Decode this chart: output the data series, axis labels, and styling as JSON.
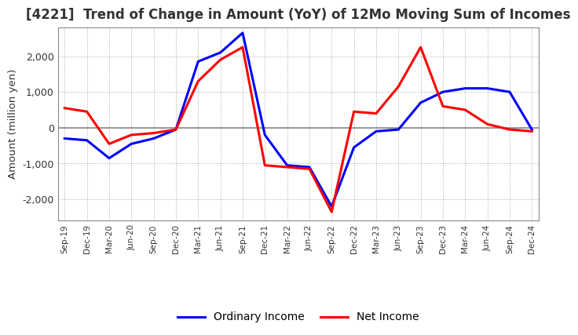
{
  "title": "[4221]  Trend of Change in Amount (YoY) of 12Mo Moving Sum of Incomes",
  "ylabel": "Amount (million yen)",
  "x_labels": [
    "Sep-19",
    "Dec-19",
    "Mar-20",
    "Jun-20",
    "Sep-20",
    "Dec-20",
    "Mar-21",
    "Jun-21",
    "Sep-21",
    "Dec-21",
    "Mar-22",
    "Jun-22",
    "Sep-22",
    "Dec-22",
    "Mar-23",
    "Jun-23",
    "Sep-23",
    "Dec-23",
    "Mar-24",
    "Jun-24",
    "Sep-24",
    "Dec-24"
  ],
  "ordinary_income": [
    -300,
    -350,
    -850,
    -450,
    -300,
    -50,
    1850,
    2100,
    2650,
    -200,
    -1050,
    -1100,
    -2200,
    -550,
    -100,
    -50,
    700,
    1000,
    1100,
    1100,
    1000,
    -50
  ],
  "net_income": [
    550,
    450,
    -450,
    -200,
    -150,
    -50,
    1300,
    1900,
    2250,
    -1050,
    -1100,
    -1150,
    -2350,
    450,
    400,
    1150,
    2250,
    600,
    500,
    100,
    -50,
    -100
  ],
  "ordinary_income_color": "#0000FF",
  "net_income_color": "#FF0000",
  "ylim": [
    -2600,
    2800
  ],
  "yticks": [
    -2000,
    -1000,
    0,
    1000,
    2000
  ],
  "background_color": "#FFFFFF",
  "grid_color": "#999999",
  "line_width": 2.2,
  "title_fontsize": 12,
  "title_color": "#333333",
  "legend_labels": [
    "Ordinary Income",
    "Net Income"
  ]
}
